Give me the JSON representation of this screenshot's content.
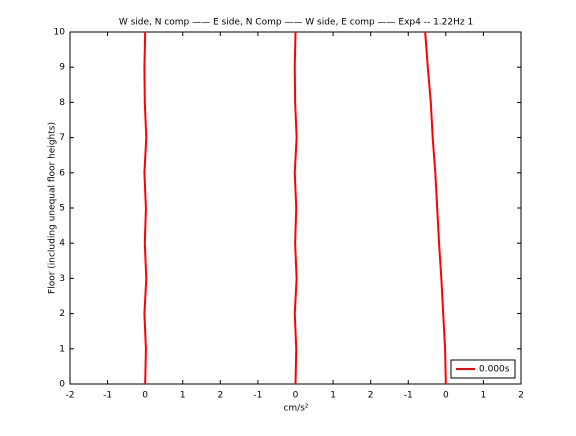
{
  "chart_data": {
    "type": "line",
    "title": "W side, N comp —— E side, N Comp —— W side, E comp —— Exp4 -- 1.22Hz 1",
    "xlabel": "cm/s²",
    "ylabel": "Floor (including unequal floor heights)",
    "xlim": [
      -2,
      10
    ],
    "xticks": [
      -2,
      -1,
      0,
      1,
      2,
      {
        "value": 3,
        "label": "-1"
      },
      {
        "value": 4,
        "label": "0"
      },
      {
        "value": 5,
        "label": "1"
      },
      {
        "value": 6,
        "label": "2"
      },
      {
        "value": 7,
        "label": "-1"
      },
      {
        "value": 8,
        "label": "0"
      },
      {
        "value": 9,
        "label": "1"
      },
      {
        "value": 10,
        "label": "2"
      }
    ],
    "ylim": [
      0,
      10
    ],
    "yticks": [
      0,
      1,
      2,
      3,
      4,
      5,
      6,
      7,
      8,
      9,
      10
    ],
    "legend_position": "lower-right",
    "series": [
      {
        "name": "0.000s",
        "color": "#ff0000",
        "x": [
          0.0,
          0.02,
          -0.02,
          0.03,
          -0.01,
          0.02,
          -0.02,
          0.03,
          -0.01,
          -0.02,
          0.0
        ],
        "values": [
          0,
          1,
          2,
          3,
          4,
          5,
          6,
          7,
          8,
          9,
          10
        ]
      },
      {
        "color": "#ff0000",
        "x": [
          4.0,
          4.02,
          3.98,
          4.03,
          3.99,
          4.02,
          3.98,
          4.03,
          3.99,
          3.98,
          4.0
        ],
        "values": [
          0,
          1,
          2,
          3,
          4,
          5,
          6,
          7,
          8,
          9,
          10
        ]
      },
      {
        "color": "#ff0000",
        "x": [
          8.0,
          7.98,
          7.93,
          7.88,
          7.82,
          7.77,
          7.72,
          7.65,
          7.6,
          7.52,
          7.45
        ],
        "values": [
          0,
          1,
          2,
          3,
          4,
          5,
          6,
          7,
          8,
          9,
          10
        ]
      }
    ]
  }
}
